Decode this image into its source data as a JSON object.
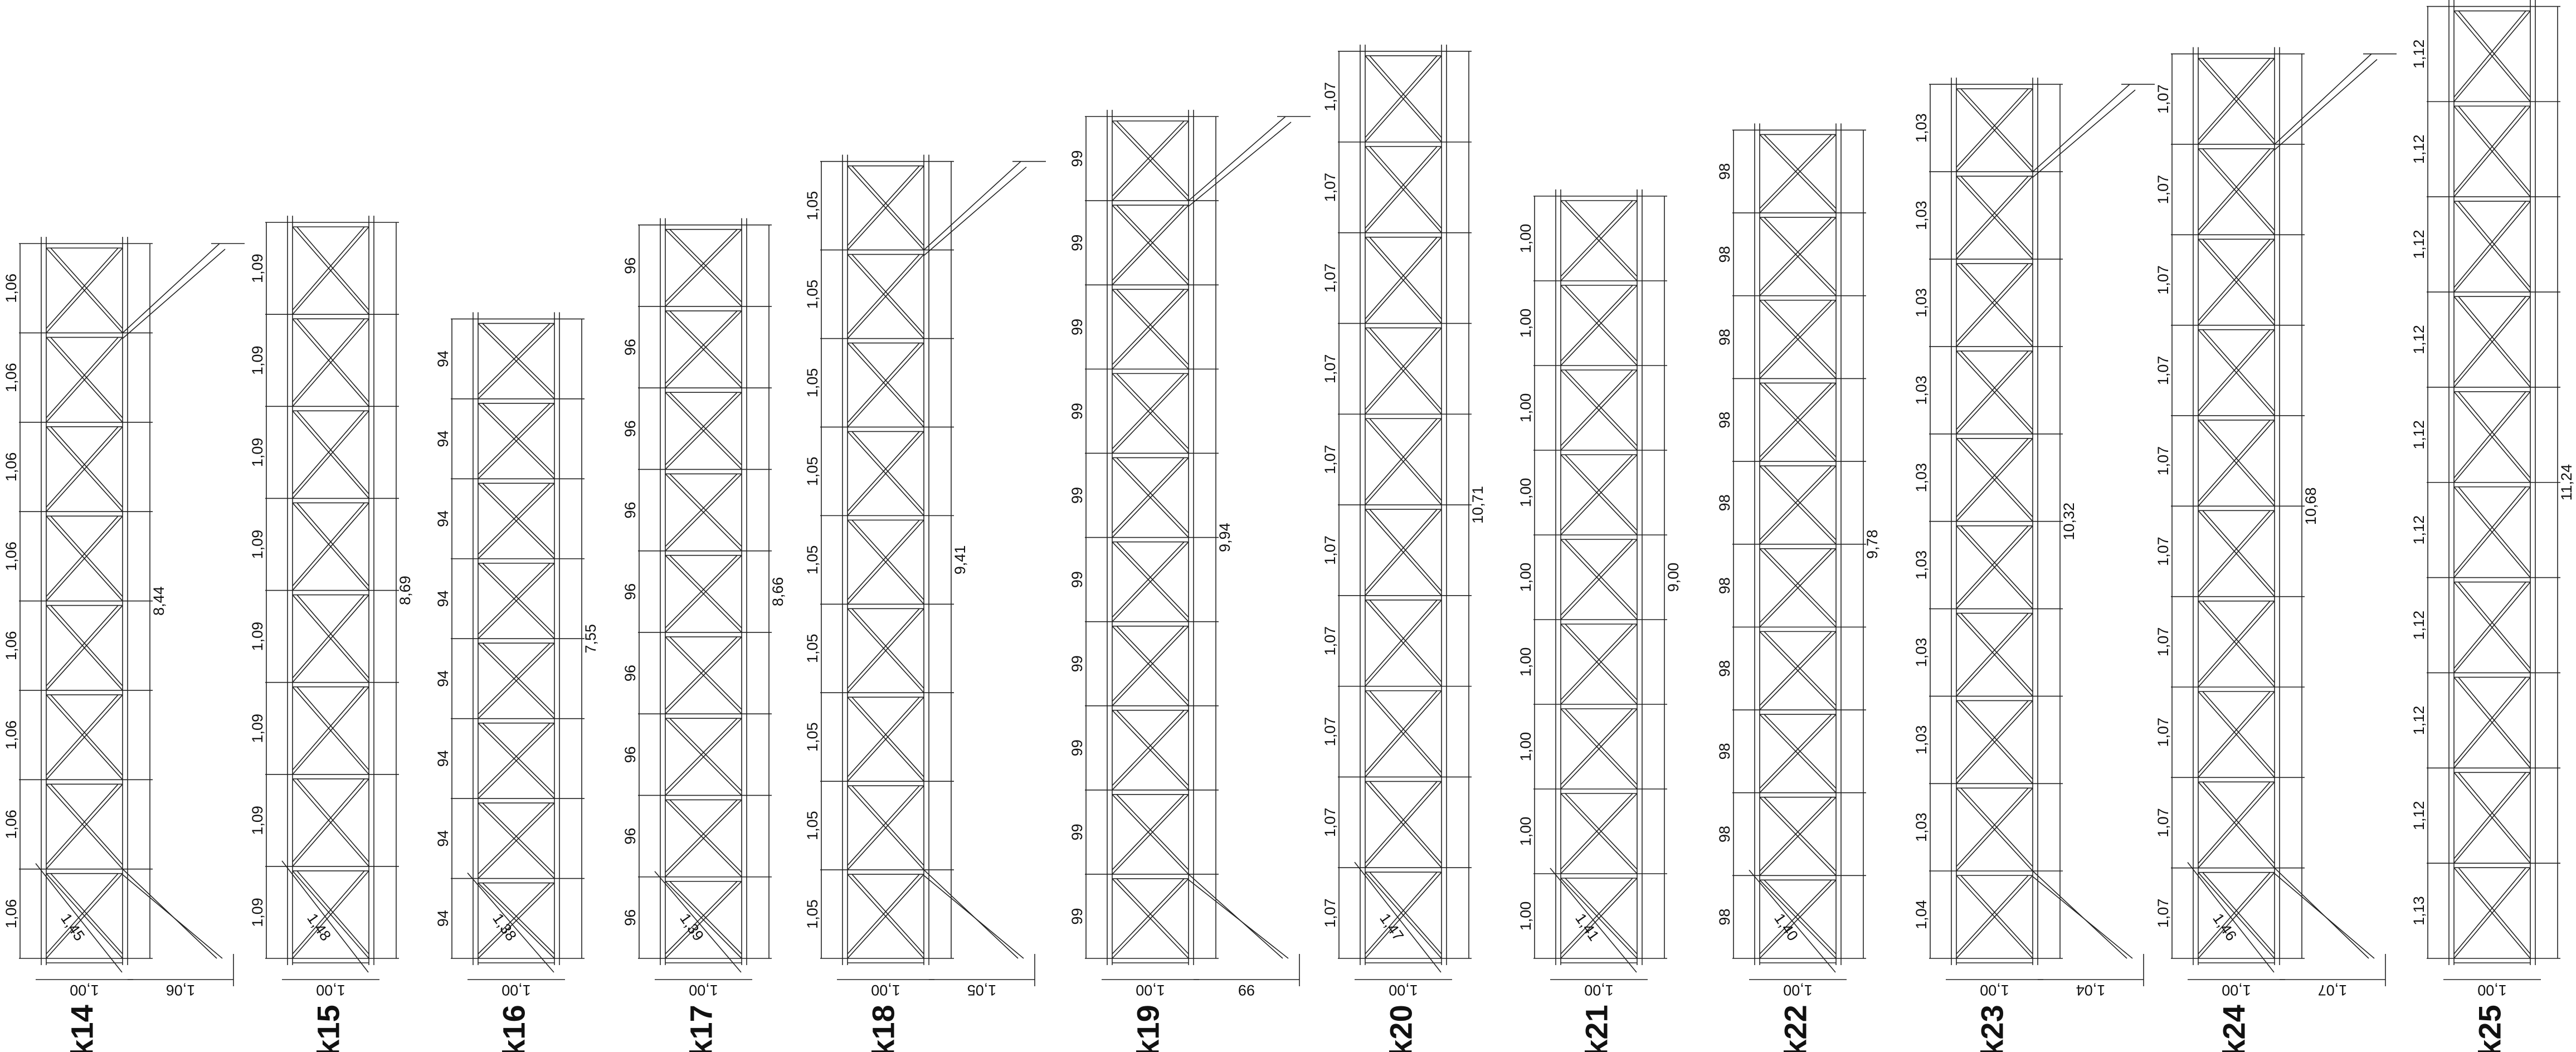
{
  "towers": [
    {
      "label": "k14",
      "segments": [
        "1,06",
        "1,06",
        "1,06",
        "1,06",
        "1,06",
        "1,06",
        "1,06",
        "1,06"
      ],
      "total": "8,44",
      "width": "1,00",
      "side": "1,06",
      "diagonal": "1,45"
    },
    {
      "label": "k15",
      "segments": [
        "1,09",
        "1,09",
        "1,09",
        "1,09",
        "1,09",
        "1,09",
        "1,09",
        "1,09"
      ],
      "total": "8,69",
      "width": "1,00",
      "diagonal": "1,48"
    },
    {
      "label": "k16",
      "segments": [
        "94",
        "94",
        "94",
        "94",
        "94",
        "94",
        "94",
        "94"
      ],
      "total": "7,55",
      "width": "1,00",
      "diagonal": "1,38"
    },
    {
      "label": "k17",
      "segments": [
        "96",
        "96",
        "96",
        "96",
        "96",
        "96",
        "96",
        "96",
        "96"
      ],
      "total": "8,66",
      "width": "1,00",
      "diagonal": "1,39"
    },
    {
      "label": "k18",
      "segments": [
        "1,05",
        "1,05",
        "1,05",
        "1,05",
        "1,05",
        "1,05",
        "1,05",
        "1,05",
        "1,05"
      ],
      "total": "9,41",
      "width": "1,00",
      "side": "1,05"
    },
    {
      "label": "k19",
      "segments": [
        "99",
        "99",
        "99",
        "99",
        "99",
        "99",
        "99",
        "99",
        "99",
        "99"
      ],
      "total": "9,94",
      "width": "1,00",
      "side": "99"
    },
    {
      "label": "k20",
      "segments": [
        "1,07",
        "1,07",
        "1,07",
        "1,07",
        "1,07",
        "1,07",
        "1,07",
        "1,07",
        "1,07",
        "1,07"
      ],
      "total": "10,71",
      "width": "1,00",
      "diagonal": "1,47"
    },
    {
      "label": "k21",
      "segments": [
        "1,00",
        "1,00",
        "1,00",
        "1,00",
        "1,00",
        "1,00",
        "1,00",
        "1,00",
        "1,00"
      ],
      "total": "9,00",
      "width": "1,00",
      "diagonal": "1,41"
    },
    {
      "label": "k22",
      "segments": [
        "98",
        "98",
        "98",
        "98",
        "98",
        "98",
        "98",
        "98",
        "98",
        "98"
      ],
      "total": "9,78",
      "width": "1,00",
      "diagonal": "1,40"
    },
    {
      "label": "k23",
      "segments": [
        "1,03",
        "1,03",
        "1,03",
        "1,03",
        "1,03",
        "1,03",
        "1,03",
        "1,03",
        "1,03",
        "1,04"
      ],
      "total": "10,32",
      "width": "1,00",
      "side": "1,04"
    },
    {
      "label": "k24",
      "segments": [
        "1,07",
        "1,07",
        "1,07",
        "1,07",
        "1,07",
        "1,07",
        "1,07",
        "1,07",
        "1,07",
        "1,07"
      ],
      "total": "10,68",
      "width": "1,00",
      "side": "1,07",
      "diagonal": "1,46"
    },
    {
      "label": "k25",
      "segments": [
        "1,12",
        "1,12",
        "1,12",
        "1,12",
        "1,12",
        "1,12",
        "1,12",
        "1,12",
        "1,12",
        "1,13"
      ],
      "total": "11,24",
      "width": "1,00"
    }
  ]
}
